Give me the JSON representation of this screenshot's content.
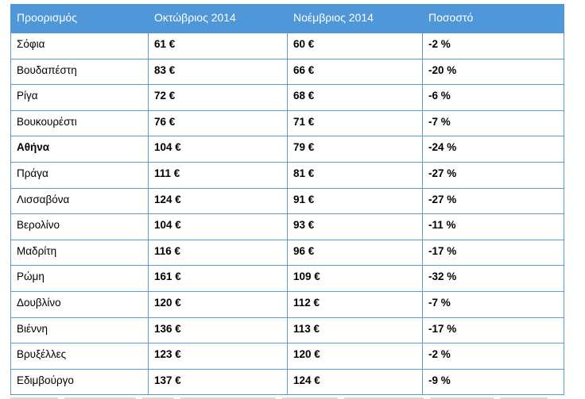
{
  "table": {
    "headers": [
      "Προορισμός",
      "Οκτώβριος 2014",
      "Νοέμβριος 2014",
      "Ποσοστό"
    ],
    "rows": [
      {
        "dest": "Σόφια",
        "oct": "61 €",
        "nov": "60 €",
        "pct": "-2 %"
      },
      {
        "dest": "Βουδαπέστη",
        "oct": "83 €",
        "nov": "66 €",
        "pct": "-20 %"
      },
      {
        "dest": "Ρίγα",
        "oct": "72 €",
        "nov": "68 €",
        "pct": "-6 %"
      },
      {
        "dest": "Βουκουρέστι",
        "oct": "76 €",
        "nov": "71 €",
        "pct": "-7 %"
      },
      {
        "dest": "Αθήνα",
        "oct": "104 €",
        "nov": "79 €",
        "pct": "-24 %",
        "highlight": true
      },
      {
        "dest": "Πράγα",
        "oct": "111 €",
        "nov": "81 €",
        "pct": "-27 %"
      },
      {
        "dest": "Λισσαβόνα",
        "oct": "124 €",
        "nov": "91 €",
        "pct": "-27 %"
      },
      {
        "dest": "Βερολίνο",
        "oct": "104 €",
        "nov": "93 €",
        "pct": "-11 %"
      },
      {
        "dest": "Μαδρίτη",
        "oct": "116 €",
        "nov": "96 €",
        "pct": "-17 %"
      },
      {
        "dest": "Ρώμη",
        "oct": "161 €",
        "nov": "109 €",
        "pct": "-32 %"
      },
      {
        "dest": "Δουβλίνο",
        "oct": "120 €",
        "nov": "112 €",
        "pct": "-7 %"
      },
      {
        "dest": "Βιέννη",
        "oct": "136 €",
        "nov": "113 €",
        "pct": "-17 %"
      },
      {
        "dest": "Βρυξέλλες",
        "oct": "123 €",
        "nov": "120 €",
        "pct": "-2 %"
      },
      {
        "dest": "Εδιμβούργο",
        "oct": "137 €",
        "nov": "124 €",
        "pct": "-9 %"
      }
    ]
  },
  "colors": {
    "header_bg": "#4f97d8",
    "header_text": "#ffffff",
    "border": "#5b9bd5"
  }
}
